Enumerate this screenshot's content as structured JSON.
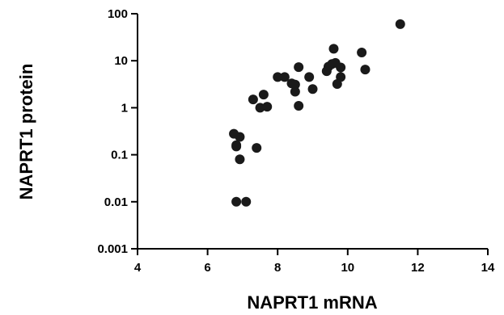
{
  "chart_data": {
    "type": "scatter",
    "xlabel": "NAPRT1 mRNA",
    "ylabel": "NAPRT1 protein",
    "xlim": [
      4,
      14
    ],
    "ylim": [
      0.001,
      100
    ],
    "yscale": "log",
    "grid": false,
    "x_ticks": [
      4,
      6,
      8,
      10,
      12,
      14
    ],
    "x_tick_labels": [
      "4",
      "6",
      "8",
      "10",
      "12",
      "14"
    ],
    "y_ticks": [
      0.001,
      0.01,
      0.1,
      1,
      10,
      100
    ],
    "y_tick_labels": [
      "0.001",
      "0.01",
      "0.1",
      "1",
      "10",
      "100"
    ],
    "marker_color": "#1a1a1a",
    "points": [
      {
        "x": 6.75,
        "y": 0.28
      },
      {
        "x": 6.82,
        "y": 0.15
      },
      {
        "x": 6.82,
        "y": 0.16
      },
      {
        "x": 6.92,
        "y": 0.24
      },
      {
        "x": 6.92,
        "y": 0.08
      },
      {
        "x": 6.82,
        "y": 0.01
      },
      {
        "x": 7.1,
        "y": 0.01
      },
      {
        "x": 7.3,
        "y": 1.5
      },
      {
        "x": 7.4,
        "y": 0.14
      },
      {
        "x": 7.5,
        "y": 1.0
      },
      {
        "x": 7.6,
        "y": 1.9
      },
      {
        "x": 7.7,
        "y": 1.05
      },
      {
        "x": 8.0,
        "y": 4.5
      },
      {
        "x": 8.2,
        "y": 4.5
      },
      {
        "x": 8.4,
        "y": 3.3
      },
      {
        "x": 8.5,
        "y": 3.1
      },
      {
        "x": 8.5,
        "y": 2.2
      },
      {
        "x": 8.6,
        "y": 7.3
      },
      {
        "x": 8.6,
        "y": 1.1
      },
      {
        "x": 8.9,
        "y": 4.5
      },
      {
        "x": 9.0,
        "y": 2.5
      },
      {
        "x": 9.4,
        "y": 6.0
      },
      {
        "x": 9.45,
        "y": 7.5
      },
      {
        "x": 9.55,
        "y": 8.5
      },
      {
        "x": 9.65,
        "y": 9.0
      },
      {
        "x": 9.6,
        "y": 18.0
      },
      {
        "x": 9.7,
        "y": 3.2
      },
      {
        "x": 9.8,
        "y": 7.2
      },
      {
        "x": 9.8,
        "y": 4.5
      },
      {
        "x": 10.4,
        "y": 15.0
      },
      {
        "x": 10.5,
        "y": 6.5
      },
      {
        "x": 11.5,
        "y": 60.0
      }
    ]
  }
}
